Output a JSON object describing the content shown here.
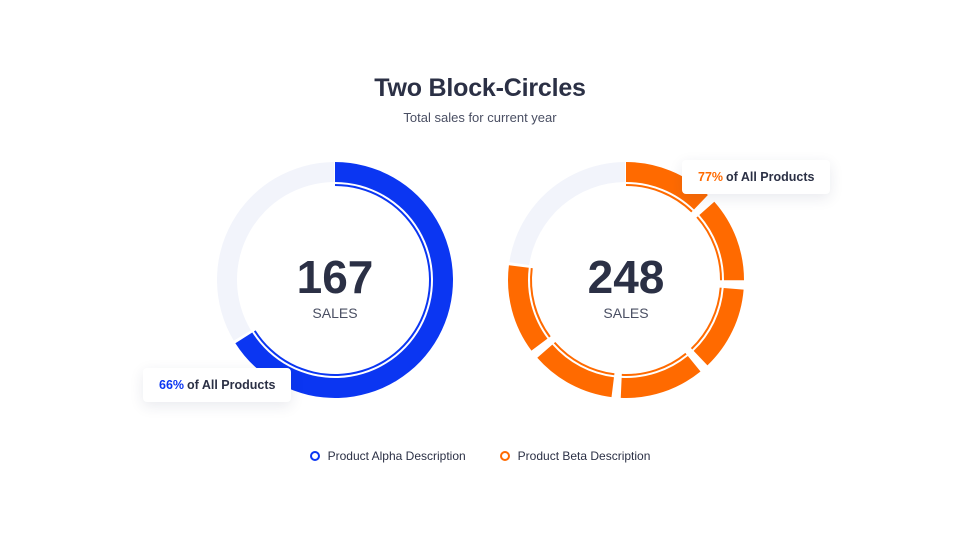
{
  "title": "Two Block-Circles",
  "subtitle": "Total sales for current year",
  "chart_data": [
    {
      "type": "pie",
      "style": "block-donut",
      "value": 167,
      "unit_label": "SALES",
      "percent": 66,
      "segments": 1,
      "callout_suffix": "of All Products",
      "color": "#0b36f2",
      "track_color": "#f2f4fb",
      "legend": "Product Alpha Description"
    },
    {
      "type": "pie",
      "style": "block-donut",
      "value": 248,
      "unit_label": "SALES",
      "percent": 77,
      "segments": 6,
      "callout_suffix": "of All Products",
      "color": "#ff6a00",
      "track_color": "#f2f4fb",
      "legend": "Product Beta Description"
    }
  ]
}
